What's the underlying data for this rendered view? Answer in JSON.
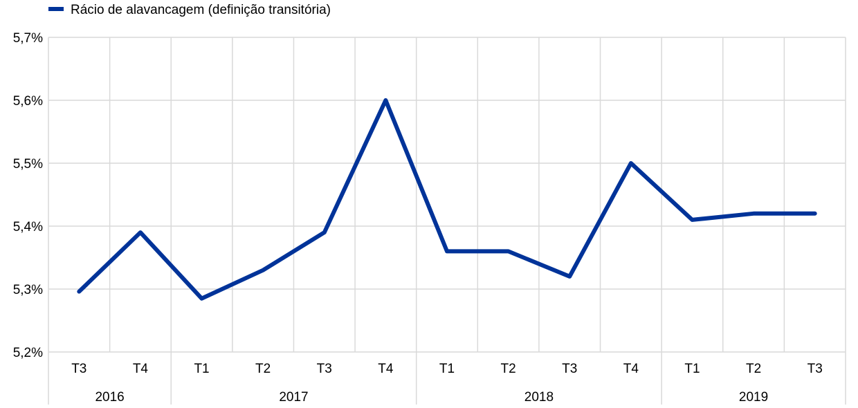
{
  "chart_data": {
    "type": "line",
    "title": "",
    "xlabel": "",
    "ylabel": "",
    "ylim": [
      5.2,
      5.7
    ],
    "y_ticks": [
      5.2,
      5.3,
      5.4,
      5.5,
      5.6,
      5.7
    ],
    "y_tick_labels": [
      "5,2%",
      "5,3%",
      "5,4%",
      "5,5%",
      "5,6%",
      "5,7%"
    ],
    "grid": true,
    "legend_position": "top-left",
    "categories": [
      "T3",
      "T4",
      "T1",
      "T2",
      "T3",
      "T4",
      "T1",
      "T2",
      "T3",
      "T4",
      "T1",
      "T2",
      "T3"
    ],
    "year_groups": [
      {
        "label": "2016",
        "count": 2
      },
      {
        "label": "2017",
        "count": 4
      },
      {
        "label": "2018",
        "count": 4
      },
      {
        "label": "2019",
        "count": 3
      }
    ],
    "series": [
      {
        "name": "Rácio de alavancagem (definição transitória)",
        "color": "#003399",
        "values": [
          5.296,
          5.39,
          5.285,
          5.33,
          5.39,
          5.6,
          5.36,
          5.36,
          5.32,
          5.5,
          5.41,
          5.42,
          5.42
        ]
      }
    ]
  }
}
